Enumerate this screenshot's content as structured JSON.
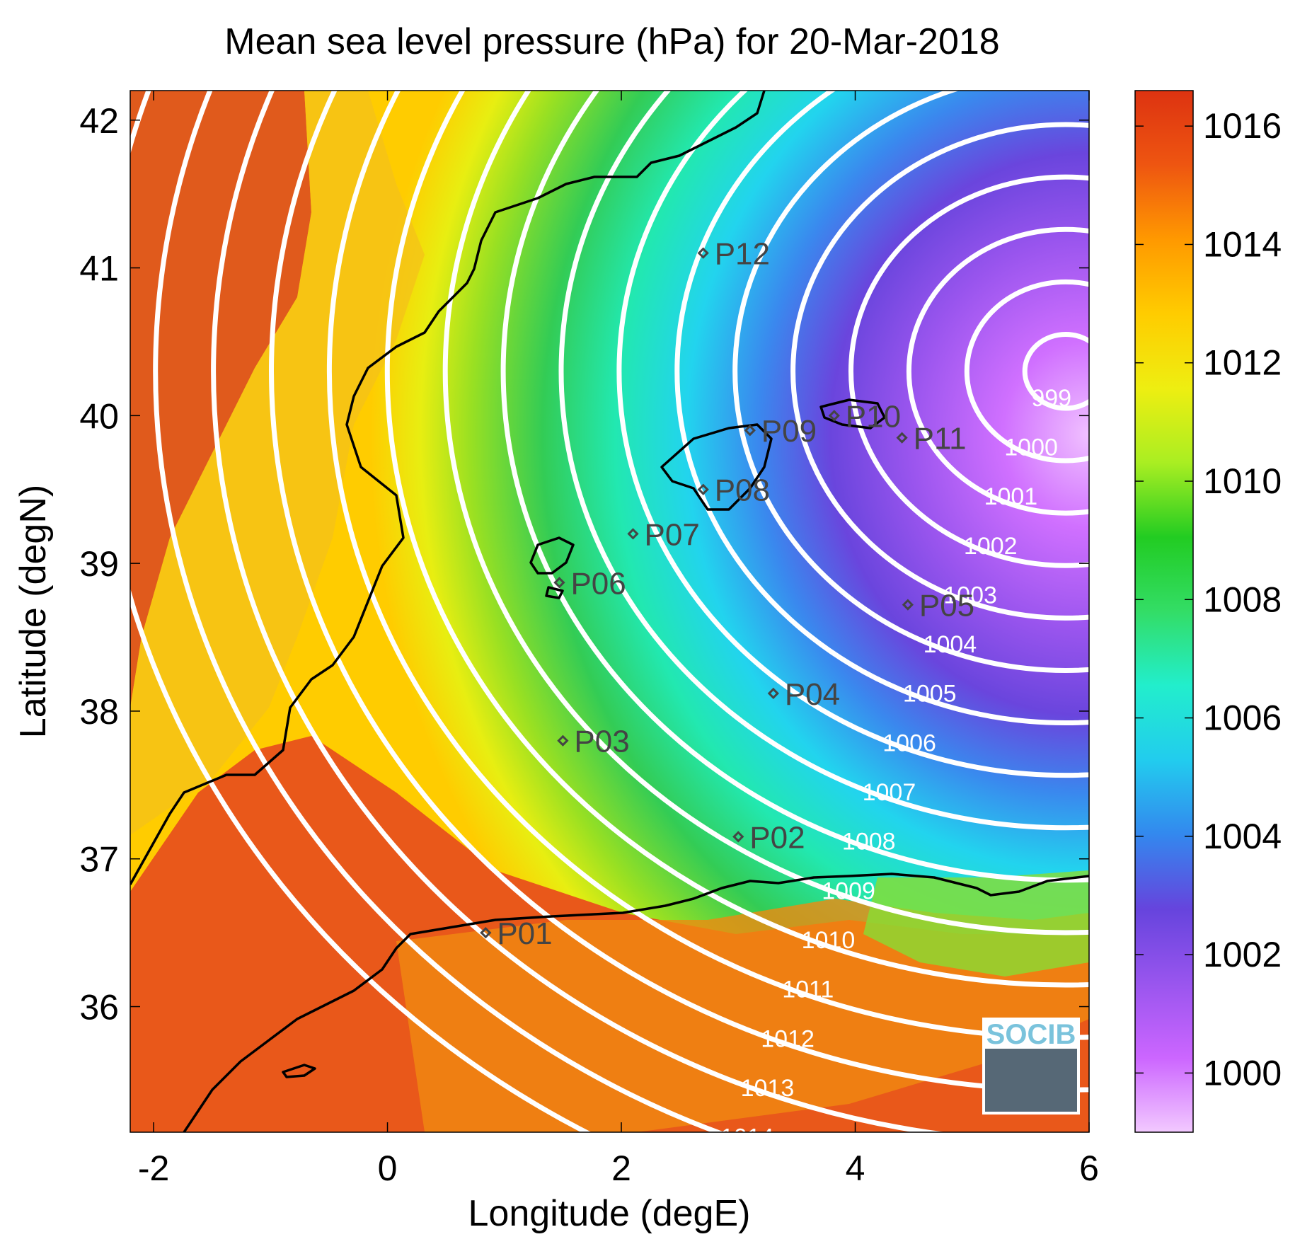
{
  "title": "Mean sea level pressure (hPa) for 20-Mar-2018",
  "xlabel": "Longitude (degE)",
  "ylabel": "Latitude (degN)",
  "xlim": [
    -2.2,
    6.0
  ],
  "ylim": [
    35.15,
    42.2
  ],
  "xticks": [
    -2,
    0,
    2,
    4,
    6
  ],
  "yticks": [
    36,
    37,
    38,
    39,
    40,
    41,
    42
  ],
  "colorbar": {
    "min": 999.0,
    "max": 1016.6,
    "ticks": [
      1000,
      1002,
      1004,
      1006,
      1008,
      1010,
      1012,
      1014,
      1016
    ],
    "colormap": [
      "#f2c9ff",
      "#cc66ff",
      "#9955ee",
      "#6644dd",
      "#3388ee",
      "#22ccee",
      "#22eecc",
      "#33dd66",
      "#22cc22",
      "#aaee22",
      "#eeee11",
      "#ffcc00",
      "#ff9900",
      "#ee5511",
      "#dd3311"
    ]
  },
  "chart_data": {
    "type": "heatmap",
    "variable": "Mean sea level pressure",
    "units": "hPa",
    "date": "20-Mar-2018",
    "contour_levels": [
      999,
      1000,
      1001,
      1002,
      1003,
      1004,
      1005,
      1006,
      1007,
      1008,
      1009,
      1010,
      1011,
      1012,
      1013,
      1014,
      1015
    ],
    "low_center": {
      "lon": 5.8,
      "lat": 40.3,
      "value": 999
    },
    "stations": [
      {
        "name": "P01",
        "lon": 0.84,
        "lat": 36.5
      },
      {
        "name": "P02",
        "lon": 3.0,
        "lat": 37.15
      },
      {
        "name": "P03",
        "lon": 1.5,
        "lat": 37.8
      },
      {
        "name": "P04",
        "lon": 3.3,
        "lat": 38.12
      },
      {
        "name": "P05",
        "lon": 4.45,
        "lat": 38.72
      },
      {
        "name": "P06",
        "lon": 1.47,
        "lat": 38.87
      },
      {
        "name": "P07",
        "lon": 2.1,
        "lat": 39.2
      },
      {
        "name": "P08",
        "lon": 2.7,
        "lat": 39.5
      },
      {
        "name": "P09",
        "lon": 3.1,
        "lat": 39.9
      },
      {
        "name": "P10",
        "lon": 3.82,
        "lat": 40.0
      },
      {
        "name": "P11",
        "lon": 4.4,
        "lat": 39.85
      },
      {
        "name": "P12",
        "lon": 2.7,
        "lat": 41.1
      }
    ]
  },
  "logo": {
    "text": "SOCIB"
  }
}
